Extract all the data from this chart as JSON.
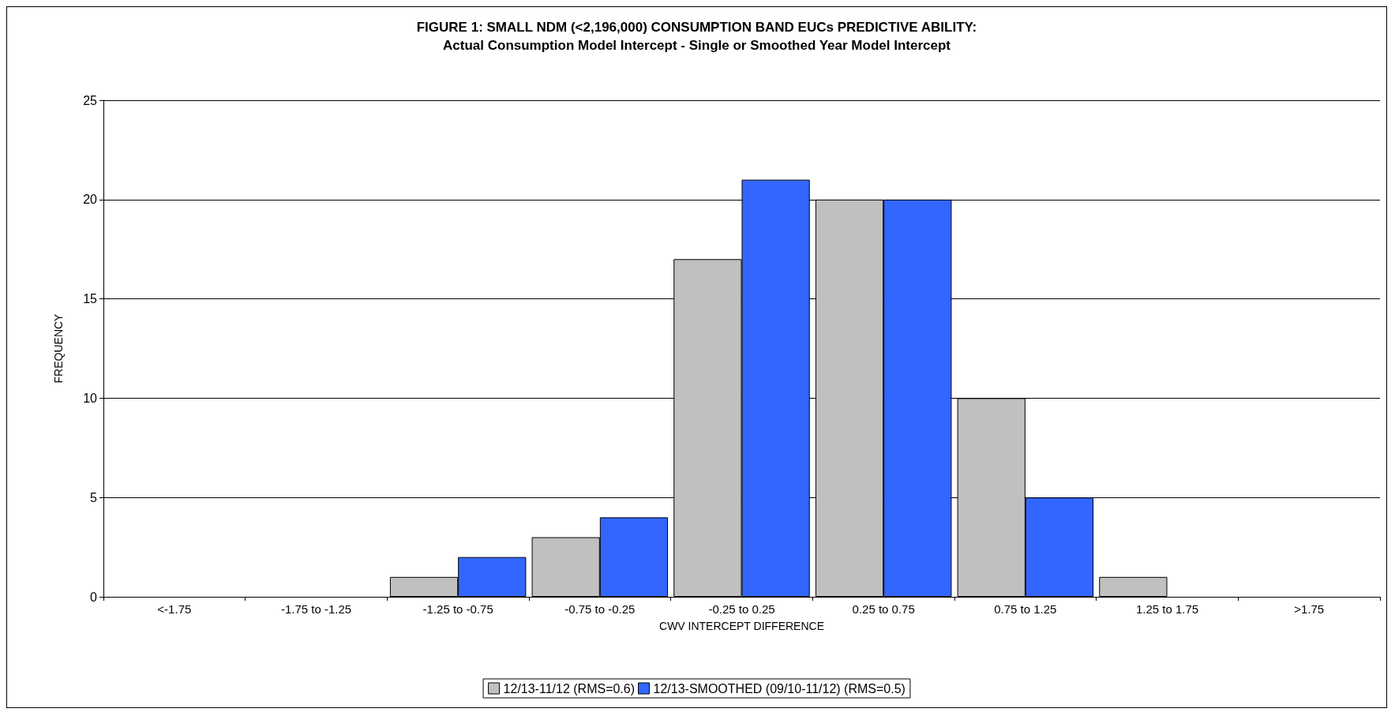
{
  "chart_data": {
    "type": "bar",
    "title": "FIGURE 1: SMALL NDM (<2,196,000) CONSUMPTION BAND EUCs PREDICTIVE ABILITY:",
    "subtitle": "Actual Consumption Model Intercept - Single or Smoothed Year Model Intercept",
    "xlabel": "CWV INTERCEPT DIFFERENCE",
    "ylabel": "FREQUENCY",
    "categories": [
      "<-1.75",
      "-1.75 to -1.25",
      "-1.25 to -0.75",
      "-0.75 to -0.25",
      "-0.25 to 0.25",
      "0.25 to 0.75",
      "0.75 to 1.25",
      "1.25 to 1.75",
      ">1.75"
    ],
    "series": [
      {
        "name": "12/13-11/12 (RMS=0.6)",
        "color": "#c0c0c0",
        "values": [
          0,
          0,
          1,
          3,
          17,
          20,
          10,
          1,
          0
        ]
      },
      {
        "name": "12/13-SMOOTHED (09/10-11/12) (RMS=0.5)",
        "color": "#3366ff",
        "values": [
          0,
          0,
          2,
          4,
          21,
          20,
          5,
          0,
          0
        ]
      }
    ],
    "ylim": [
      0,
      25
    ],
    "yticks": [
      0,
      5,
      10,
      15,
      20,
      25
    ],
    "grid": "y",
    "legend": "bottom"
  }
}
